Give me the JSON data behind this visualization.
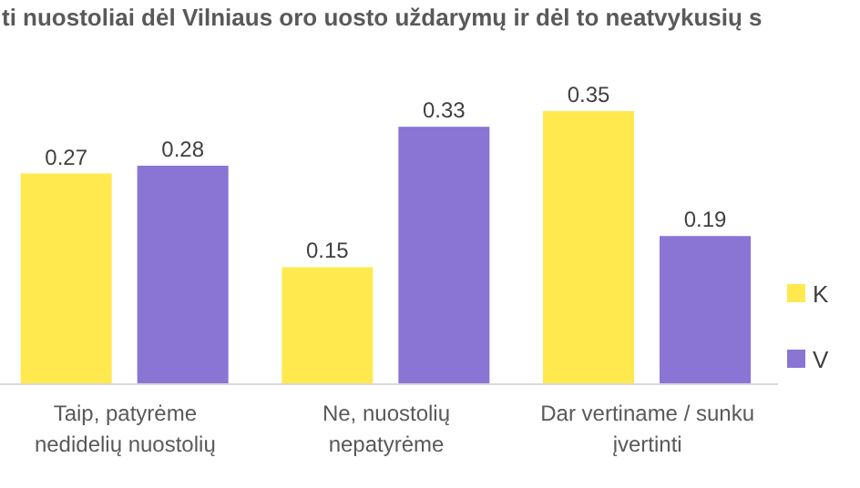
{
  "chart_data": {
    "type": "bar",
    "title": "ti nuostoliai dėl Vilniaus oro uosto uždarymų ir dėl to neatvykusių s",
    "categories": [
      "Taip, patyrėme nedidelių nuostolių",
      "Ne, nuostolių nepatyrėme",
      "Dar vertiname / sunku įvertinti"
    ],
    "series": [
      {
        "name": "K",
        "color": "#ffe94f",
        "values": [
          0.27,
          0.15,
          0.35
        ]
      },
      {
        "name": "V",
        "color": "#8a74d4",
        "values": [
          0.28,
          0.33,
          0.19
        ]
      }
    ],
    "data_labels": true,
    "legend": "right"
  }
}
